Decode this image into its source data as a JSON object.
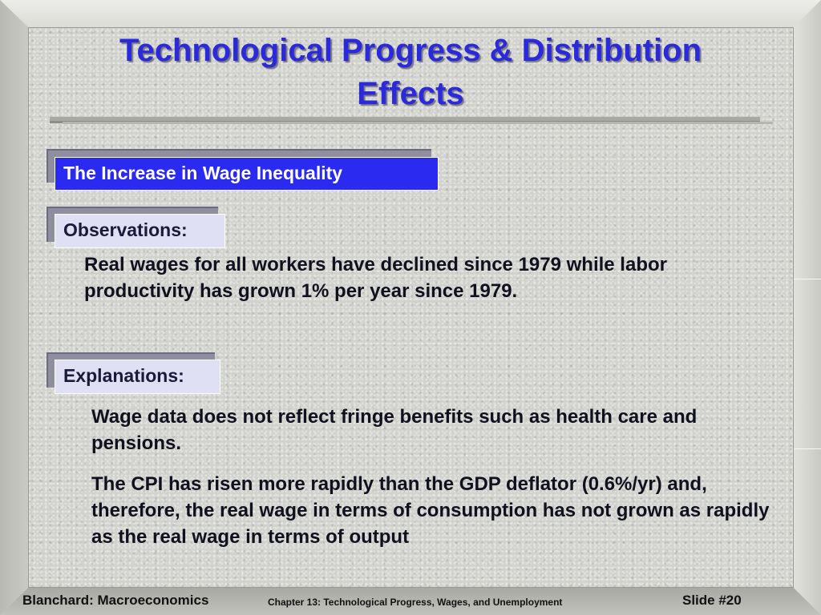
{
  "slide": {
    "title_line1": "Technological Progress & Distribution",
    "title_line2": "Effects",
    "section_heading": "The  Increase in Wage Inequality",
    "observations": {
      "label": "Observations:",
      "paragraphs": [
        "Real wages for all workers have declined since 1979 while labor productivity has grown 1% per year since 1979."
      ]
    },
    "explanations": {
      "label": "Explanations:",
      "paragraphs": [
        "Wage data does not reflect fringe benefits such as health care and pensions.",
        "The CPI has risen more rapidly than the GDP deflator (0.6%/yr) and, therefore, the real wage in terms of consumption has not grown as rapidly as the real wage in terms of output"
      ]
    }
  },
  "footer": {
    "left": "Blanchard: Macroeconomics",
    "center": "Chapter 13: Technological Progress, Wages, and Unemployment",
    "right": "Slide #20"
  },
  "colors": {
    "title": "#2a2adc",
    "heading_background": "#2a2af0",
    "label_background": "#e0e0f5",
    "background": "#d2d2cd"
  }
}
